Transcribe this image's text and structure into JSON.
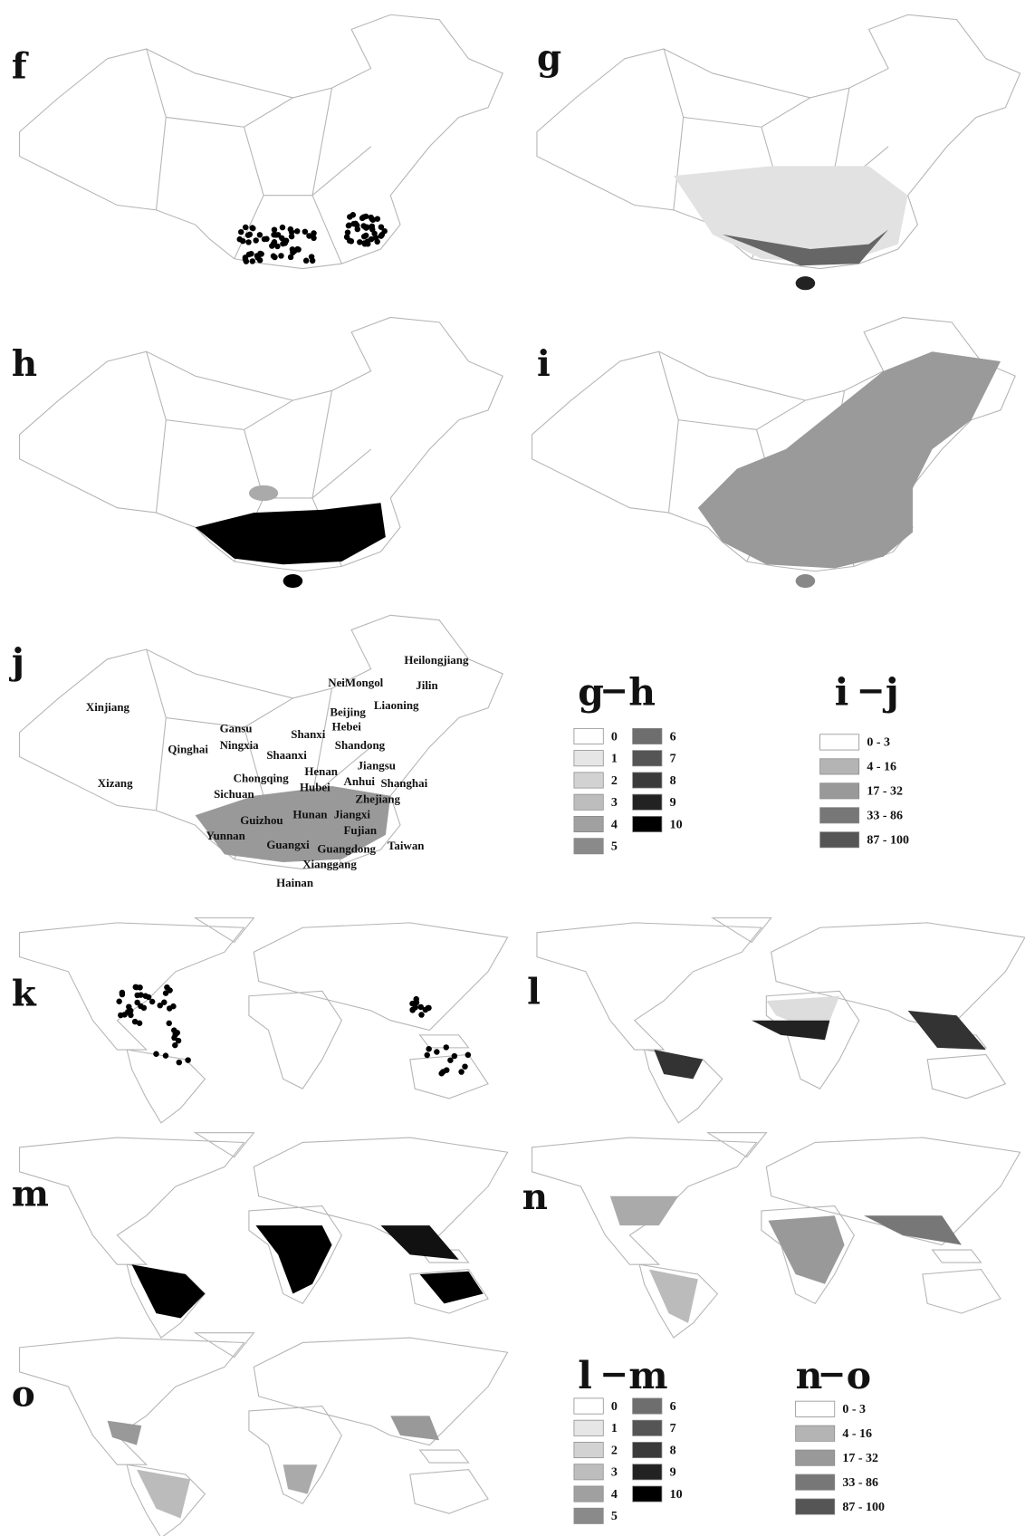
{
  "panels": [
    "f",
    "g",
    "h",
    "i",
    "j",
    "k",
    "l",
    "m",
    "n",
    "o"
  ],
  "provinces": [
    "Heilongjiang",
    "NeiMongol",
    "Jilin",
    "Liaoning",
    "Xinjiang",
    "Beijing",
    "Gansu",
    "Hebei",
    "Shanxi",
    "Ningxia",
    "Qinghai",
    "Shandong",
    "Shaanxi",
    "Jiangsu",
    "Henan",
    "Chongqing",
    "Anhui",
    "Shanghai",
    "Xizang",
    "Hubei",
    "Sichuan",
    "Zhejiang",
    "Hunan",
    "Jiangxi",
    "Guizhou",
    "Fujian",
    "Yunnan",
    "Guangxi",
    "Taiwan",
    "Guangdong",
    "Xianggang",
    "Hainan"
  ],
  "legends": [
    {
      "left": "g",
      "right": "h",
      "items": [
        "0",
        "1",
        "2",
        "3",
        "4",
        "5",
        "6",
        "7",
        "8",
        "9",
        "10"
      ]
    },
    {
      "left": "i",
      "right": "j",
      "items": [
        "0 - 3",
        "4 - 16",
        "17 - 32",
        "33 - 86",
        "87 - 100"
      ]
    },
    {
      "left": "l",
      "right": "m",
      "items": [
        "0",
        "1",
        "2",
        "3",
        "4",
        "5",
        "6",
        "7",
        "8",
        "9",
        "10"
      ]
    },
    {
      "left": "n",
      "right": "o",
      "items": [
        "0 - 3",
        "4 - 16",
        "17 - 32",
        "33 - 86",
        "87 - 100"
      ]
    }
  ]
}
